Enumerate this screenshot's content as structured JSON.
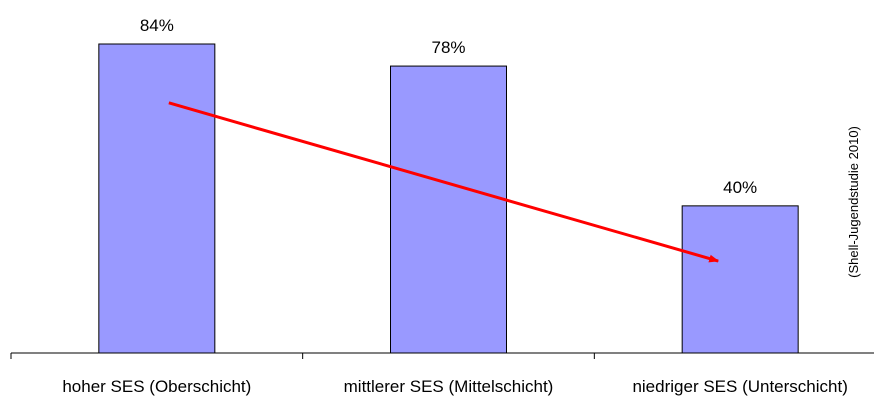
{
  "chart_data": {
    "type": "bar",
    "title": "",
    "xlabel": "",
    "ylabel": "",
    "categories": [
      "hoher SES (Oberschicht)",
      "mittlerer SES (Mittelschicht)",
      "niedriger SES (Unterschicht)"
    ],
    "values": [
      84,
      78,
      40
    ],
    "value_labels": [
      "84%",
      "78%",
      "40%"
    ],
    "ylim": [
      0,
      90
    ],
    "grid": false,
    "bar_color": "#9999ff",
    "trend_arrow": {
      "color": "#ff0000",
      "from_category": "hoher SES (Oberschicht)",
      "to_category": "niedriger SES (Unterschicht)",
      "from_value": 68,
      "to_value": 25
    },
    "source_note": "(Shell-Jugendstudie 2010)"
  }
}
